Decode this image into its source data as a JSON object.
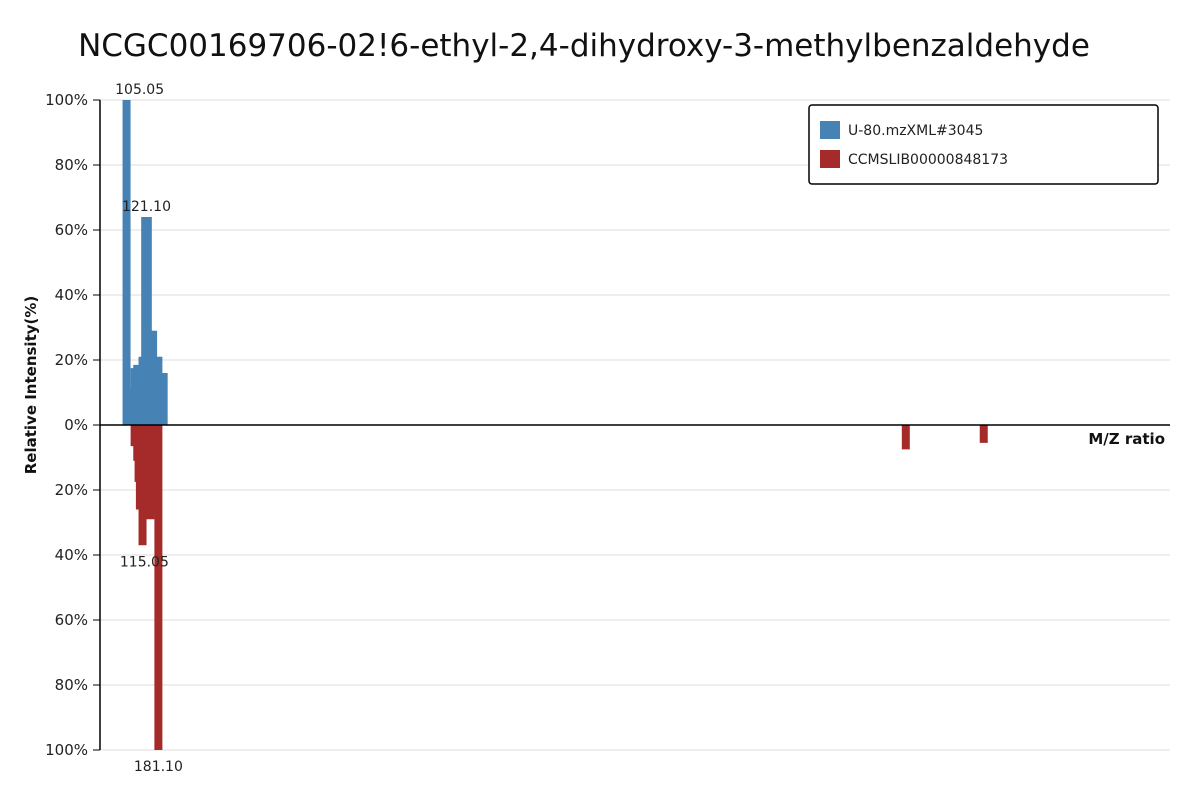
{
  "chart_data": {
    "type": "bar",
    "title": "NCGC00169706-02!6-ethyl-2,4-dihydroxy-3-methylbenzaldehyde",
    "xlabel": "M/Z ratio",
    "ylabel": "Relative Intensity(%)",
    "xlim": [
      95,
      500
    ],
    "ylim": [
      -100,
      100
    ],
    "yticks": [
      {
        "value": 100,
        "label": "100%"
      },
      {
        "value": 80,
        "label": "80%"
      },
      {
        "value": 60,
        "label": "60%"
      },
      {
        "value": 40,
        "label": "40%"
      },
      {
        "value": 20,
        "label": "20%"
      },
      {
        "value": 0,
        "label": "0%"
      },
      {
        "value": -20,
        "label": "20%"
      },
      {
        "value": -40,
        "label": "40%"
      },
      {
        "value": -60,
        "label": "60%"
      },
      {
        "value": -80,
        "label": "80%"
      },
      {
        "value": -100,
        "label": "100%"
      }
    ],
    "legend_position": "top-right",
    "grid": true,
    "series": [
      {
        "name": "U-80.mzXML#3045",
        "color": "#4682b4",
        "direction": "up",
        "peaks": [
          {
            "mz": 106.1,
            "intensity": 9.5
          },
          {
            "mz": 107.1,
            "intensity": 11
          },
          {
            "mz": 108.1,
            "intensity": 17.5
          },
          {
            "mz": 109.1,
            "intensity": 18.5
          },
          {
            "mz": 105.05,
            "intensity": 100,
            "label": "105.05"
          },
          {
            "mz": 111.1,
            "intensity": 21
          },
          {
            "mz": 112.1,
            "intensity": 64
          },
          {
            "mz": 113.1,
            "intensity": 64
          },
          {
            "mz": 114.1,
            "intensity": 29
          },
          {
            "mz": 115.1,
            "intensity": 29
          },
          {
            "mz": 116.1,
            "intensity": 12.5
          },
          {
            "mz": 117.1,
            "intensity": 21
          },
          {
            "mz": 118.1,
            "intensity": 16
          },
          {
            "mz": 119.1,
            "intensity": 16
          }
        ],
        "labels": [
          {
            "text": "105.05",
            "mz": 110.0,
            "intensity": 100
          },
          {
            "text": "121.10",
            "mz": 112.6,
            "intensity": 64
          }
        ]
      },
      {
        "name": "CCMSLIB00000848173",
        "color": "#a52a2a",
        "direction": "down",
        "peaks": [
          {
            "mz": 108.1,
            "intensity": 6.5
          },
          {
            "mz": 109.1,
            "intensity": 11
          },
          {
            "mz": 109.6,
            "intensity": 17.5
          },
          {
            "mz": 110.1,
            "intensity": 26
          },
          {
            "mz": 111.1,
            "intensity": 37
          },
          {
            "mz": 112.1,
            "intensity": 19
          },
          {
            "mz": 113.1,
            "intensity": 18
          },
          {
            "mz": 114.1,
            "intensity": 29
          },
          {
            "mz": 115.1,
            "intensity": 27
          },
          {
            "mz": 116.1,
            "intensity": 27
          },
          {
            "mz": 117.1,
            "intensity": 100
          },
          {
            "mz": 400.0,
            "intensity": 7.5
          },
          {
            "mz": 429.5,
            "intensity": 5.5
          }
        ],
        "labels": [
          {
            "text": "115.05",
            "mz": 111.8,
            "intensity": 37
          },
          {
            "text": "181.10",
            "mz": 117.1,
            "intensity": 100
          }
        ]
      }
    ]
  }
}
